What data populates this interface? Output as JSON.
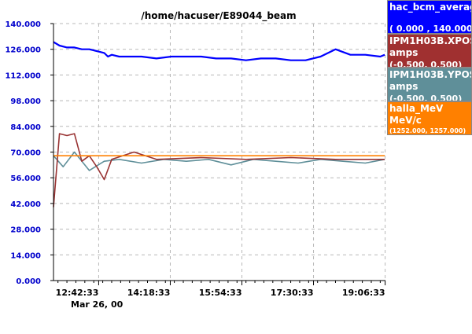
{
  "chart_data": {
    "type": "line",
    "title": "/home/hacuser/E89044_beam",
    "date_label": "Mar 26, 00",
    "xlim": [
      "11:42:00",
      "19:07:00"
    ],
    "ylim": [
      0,
      140
    ],
    "y_ticks": [
      "0.000",
      "14.000",
      "28.000",
      "42.000",
      "56.000",
      "70.000",
      "84.000",
      "98.000",
      "112.000",
      "126.000",
      "140.000"
    ],
    "x_ticks": [
      "12:42:33",
      "14:18:33",
      "15:54:33",
      "17:30:33",
      "19:06:33"
    ],
    "grid": true,
    "legend_placement": "right",
    "series": [
      {
        "name": "hac_bcm_average",
        "unit": "",
        "range": "( 0.000 , 140.000)",
        "color": "#0000ff",
        "x": [
          "11:42",
          "11:50",
          "12:00",
          "12:10",
          "12:20",
          "12:30",
          "12:40",
          "12:50",
          "12:55",
          "13:00",
          "13:10",
          "13:20",
          "13:40",
          "14:00",
          "14:20",
          "14:40",
          "15:00",
          "15:20",
          "15:40",
          "16:00",
          "16:20",
          "16:40",
          "17:00",
          "17:20",
          "17:40",
          "18:00",
          "18:20",
          "18:40",
          "19:00",
          "19:06"
        ],
        "values": [
          130,
          128,
          127,
          127,
          126,
          126,
          125,
          124,
          122,
          123,
          122,
          122,
          122,
          121,
          122,
          122,
          122,
          121,
          121,
          120,
          121,
          121,
          120,
          120,
          122,
          126,
          123,
          123,
          122,
          123
        ]
      },
      {
        "name": "IPM1H03B.XPOS",
        "unit": "amps",
        "range": "(-0.500, 0.500)",
        "color": "#993333",
        "x": [
          "11:42",
          "11:50",
          "12:00",
          "12:10",
          "12:20",
          "12:30",
          "12:40",
          "12:50",
          "13:00",
          "13:30",
          "14:00",
          "15:00",
          "16:00",
          "17:00",
          "18:00",
          "19:06"
        ],
        "values": [
          40,
          80,
          79,
          80,
          65,
          68,
          62,
          55,
          66,
          70,
          66,
          67,
          66,
          67,
          66,
          66
        ]
      },
      {
        "name": "IPM1H03B.YPOS",
        "unit": "amps",
        "range": "(-0.500, 0.500)",
        "color": "#5f8f99",
        "x": [
          "11:42",
          "11:55",
          "12:10",
          "12:30",
          "12:50",
          "13:10",
          "13:40",
          "14:10",
          "14:40",
          "15:10",
          "15:40",
          "16:10",
          "16:40",
          "17:10",
          "17:40",
          "18:10",
          "18:40",
          "19:06"
        ],
        "values": [
          68,
          62,
          70,
          60,
          65,
          66,
          64,
          66,
          65,
          66,
          63,
          66,
          65,
          64,
          66,
          65,
          64,
          66
        ]
      },
      {
        "name": "halla_MeV",
        "unit": "MeV/c",
        "range": "(1252.000, 1257.000)",
        "color": "#ff8000",
        "x": [
          "11:42",
          "19:06"
        ],
        "values": [
          68,
          68
        ]
      }
    ]
  }
}
